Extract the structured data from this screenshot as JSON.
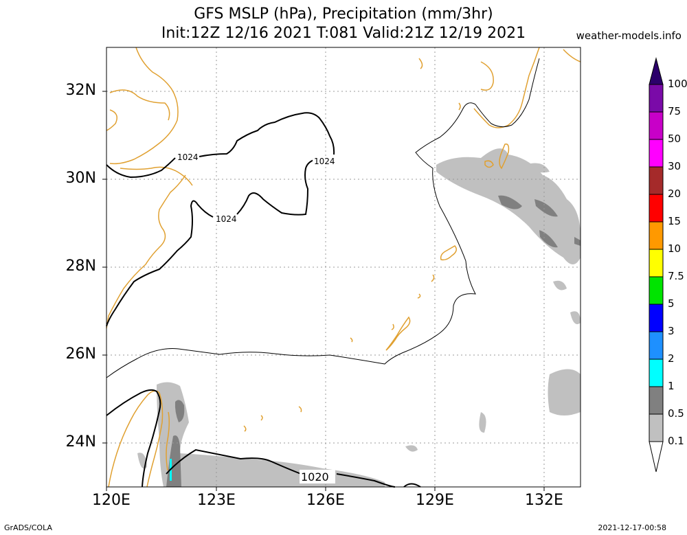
{
  "title": {
    "line1": "GFS MSLP (hPa), Precipitation (mm/3hr)",
    "line2": "Init:12Z 12/16 2021 T:081 Valid:21Z 12/19 2021"
  },
  "site": "weather-models.info",
  "footer": {
    "left": "GrADS/COLA",
    "right": "2021-12-17-00:58"
  },
  "map": {
    "lon_range": [
      120,
      133
    ],
    "lat_range": [
      23,
      33
    ],
    "lat_labels": [
      "32N",
      "30N",
      "28N",
      "26N",
      "24N"
    ],
    "lon_labels": [
      "120E",
      "123E",
      "126E",
      "129E",
      "132E"
    ],
    "isobar_labels": [
      "1024",
      "1024",
      "1024",
      "1020"
    ]
  },
  "colorbar": {
    "labels": [
      "100",
      "75",
      "50",
      "30",
      "20",
      "15",
      "10",
      "7.5",
      "5",
      "3",
      "2",
      "1",
      "0.5",
      "0.1"
    ],
    "colors": [
      "#2b006b",
      "#7a0aa8",
      "#c800c8",
      "#ff00ff",
      "#a52a2a",
      "#ff0000",
      "#ff9900",
      "#ffff00",
      "#00e400",
      "#0000ff",
      "#1e90ff",
      "#00ffff",
      "#808080",
      "#c0c0c0"
    ]
  },
  "colors": {
    "coast": "#e0a030",
    "precip_light": "#c0c0c0",
    "precip_mid": "#808080",
    "isobar": "#000000"
  }
}
